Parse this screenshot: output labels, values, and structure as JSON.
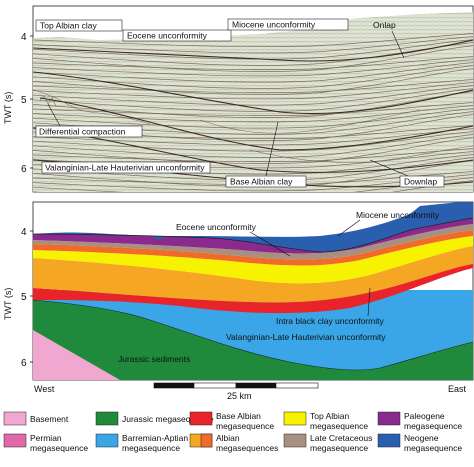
{
  "axis": {
    "label": "TWT (s)",
    "ticks": [
      "4",
      "5",
      "6"
    ]
  },
  "seismic_panel": {
    "labels": {
      "top_albian_clay": "Top Albian clay",
      "onlap": "Onlap",
      "eocene_unconformity": "Eocene unconformity",
      "miocene_unconformity": "Miocene unconformity",
      "differential_compaction": "Differential compaction",
      "valanginian_hauterivian": "Valanginian-Late  Hauterivian unconformity",
      "base_albian_clay": "Base Albian clay",
      "downlap": "Downlap"
    }
  },
  "interpretation_panel": {
    "labels": {
      "miocene_unconformity": "Miocene unconformity",
      "eocene_unconformity": "Eocene unconformity",
      "intra_black_clay": "Intra black clay unconformity",
      "valanginian_hauterivian": "Valanginian-Late Hauterivian unconformity",
      "jurassic_sediments": "Jurassic sediments"
    },
    "west": "West",
    "east": "East",
    "scale_label": "25 km"
  },
  "legend": [
    {
      "id": "basement",
      "label": "Basement",
      "label2": "",
      "color": "#f0a8d0",
      "pattern": "none"
    },
    {
      "id": "jurassic",
      "label": "Jurassic megasequence",
      "label2": "",
      "color": "#1f8a3c",
      "pattern": "none"
    },
    {
      "id": "base-albian",
      "label": "Base Albian",
      "label2": "megasequence",
      "color": "#e8242a",
      "pattern": "none"
    },
    {
      "id": "top-albian",
      "label": "Top Albian",
      "label2": "megasequence",
      "color": "#f7f200",
      "pattern": "none"
    },
    {
      "id": "paleogene",
      "label": "Paleogene",
      "label2": "megasequence",
      "color": "#8b2a8e",
      "pattern": "none"
    },
    {
      "id": "permian",
      "label": "Permian",
      "label2": "megasequence",
      "color": "#e06aa8",
      "pattern": "none"
    },
    {
      "id": "barremian-aptian",
      "label": "Barremian-Aptian",
      "label2": "megasequence",
      "color": "#3aa6e8",
      "pattern": "none"
    },
    {
      "id": "albian",
      "label": "Albian",
      "label2": "megasequences",
      "color": "#f5a623",
      "pattern": "split"
    },
    {
      "id": "late-cretaceous",
      "label": "Late Cretaceous",
      "label2": "megasequence",
      "color": "#a89080",
      "pattern": "none"
    },
    {
      "id": "neogene",
      "label": "Neogene",
      "label2": "megasequence",
      "color": "#2a5fb0",
      "pattern": "none"
    }
  ]
}
